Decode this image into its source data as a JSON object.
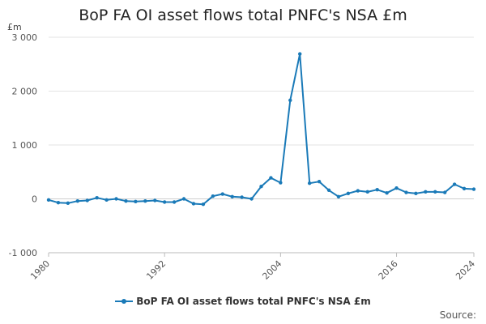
{
  "chart_data": {
    "type": "line",
    "title": "BoP FA OI asset flows total PNFC's NSA £m",
    "ylabel": "£m",
    "xlabel": "",
    "x": [
      1980,
      1981,
      1982,
      1983,
      1984,
      1985,
      1986,
      1987,
      1988,
      1989,
      1990,
      1991,
      1992,
      1993,
      1994,
      1995,
      1996,
      1997,
      1998,
      1999,
      2000,
      2001,
      2002,
      2003,
      2004,
      2005,
      2006,
      2007,
      2008,
      2009,
      2010,
      2011,
      2012,
      2013,
      2014,
      2015,
      2016,
      2017,
      2018,
      2019,
      2020,
      2021,
      2022,
      2023,
      2024
    ],
    "series": [
      {
        "name": "BoP FA OI asset flows total PNFC's NSA £m",
        "color": "#1a7ab8",
        "values": [
          -20,
          -70,
          -80,
          -40,
          -30,
          20,
          -20,
          0,
          -40,
          -50,
          -40,
          -30,
          -60,
          -60,
          0,
          -90,
          -100,
          50,
          90,
          40,
          30,
          0,
          230,
          390,
          300,
          1830,
          2690,
          290,
          320,
          160,
          40,
          100,
          150,
          130,
          170,
          110,
          200,
          120,
          100,
          130,
          130,
          120,
          270,
          190,
          180
        ]
      }
    ],
    "yticks": [
      -1000,
      0,
      1000,
      2000,
      3000
    ],
    "ytick_labels": [
      "-1 000",
      "0",
      "1 000",
      "2 000",
      "3 000"
    ],
    "xticks": [
      1980,
      1992,
      2004,
      2016,
      2024
    ],
    "xtick_labels": [
      "1980",
      "1992",
      "2004",
      "2016",
      "2024"
    ],
    "ylim": [
      -1000,
      3000
    ],
    "xlim": [
      1980,
      2024
    ],
    "grid": "horizontal",
    "legend_position": "bottom-center"
  },
  "legend": {
    "label": "BoP FA OI asset flows total PNFC's NSA £m"
  },
  "footer": {
    "source": "Source:"
  }
}
